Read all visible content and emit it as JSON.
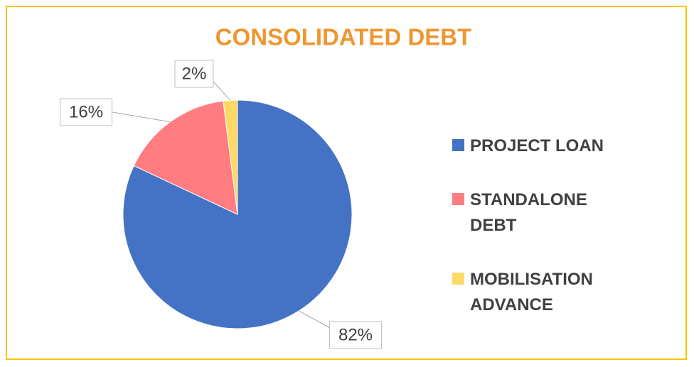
{
  "chart_data": {
    "type": "pie",
    "title": "CONSOLIDATED DEBT",
    "categories": [
      "PROJECT LOAN",
      "STANDALONE DEBT",
      "MOBILISATION ADVANCE"
    ],
    "values": [
      82,
      16,
      2
    ],
    "value_labels": [
      "82%",
      "16%",
      "2%"
    ],
    "colors": [
      "#4472c4",
      "#ff7c80",
      "#ffd966"
    ],
    "legend": "right"
  }
}
